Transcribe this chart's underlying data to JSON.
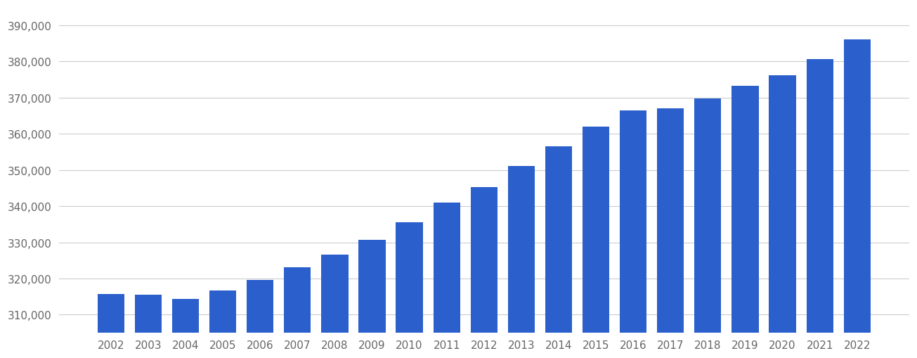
{
  "years": [
    2002,
    2003,
    2004,
    2005,
    2006,
    2007,
    2008,
    2009,
    2010,
    2011,
    2012,
    2013,
    2014,
    2015,
    2016,
    2017,
    2018,
    2019,
    2020,
    2021,
    2022
  ],
  "values": [
    315700,
    315600,
    314300,
    316700,
    319700,
    323200,
    326600,
    330700,
    335500,
    341000,
    345200,
    351000,
    356500,
    362000,
    366500,
    367000,
    369800,
    373200,
    376200,
    380700,
    386000
  ],
  "bar_color": "#2a5fcc",
  "bar_bottom": 305000,
  "ylim_min": 305000,
  "ylim_max": 395000,
  "yticks": [
    310000,
    320000,
    330000,
    340000,
    350000,
    360000,
    370000,
    380000,
    390000
  ],
  "background_color": "#ffffff",
  "grid_color": "#cccccc",
  "tick_label_color": "#666666",
  "tick_fontsize": 11,
  "bar_width": 0.72
}
